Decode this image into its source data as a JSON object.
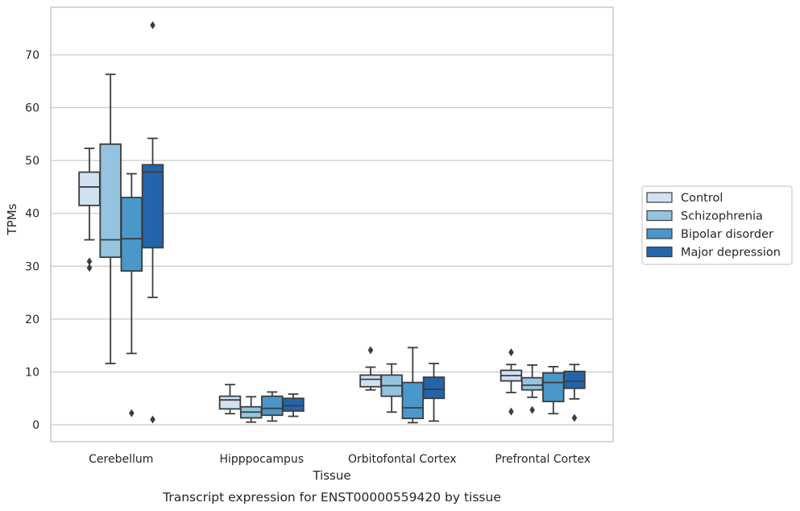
{
  "caption": "Transcript expression for ENST00000559420 by tissue",
  "chart_data": {
    "type": "box",
    "xlabel": "Tissue",
    "ylabel": "TPMs",
    "ylim": [
      -3.2,
      79
    ],
    "yticks": [
      0,
      10,
      20,
      30,
      40,
      50,
      60,
      70
    ],
    "grid": "horizontal",
    "legend_position": "right",
    "categories": [
      "Cerebellum",
      "Hipppocampus",
      "Orbitofontal Cortex",
      "Prefrontal Cortex"
    ],
    "series": [
      {
        "name": "Control",
        "color": "#d0e1f2",
        "boxes": [
          {
            "whisker_low": 35,
            "q1": 41.5,
            "median": 45,
            "q3": 47.8,
            "whisker_high": 52.3,
            "outliers": [
              29.7,
              30.9
            ]
          },
          {
            "whisker_low": 2.1,
            "q1": 3,
            "median": 4.7,
            "q3": 5.4,
            "whisker_high": 7.6,
            "outliers": []
          },
          {
            "whisker_low": 6.6,
            "q1": 7.2,
            "median": 8.6,
            "q3": 9.4,
            "whisker_high": 10.9,
            "outliers": [
              14.1
            ]
          },
          {
            "whisker_low": 6.1,
            "q1": 8.3,
            "median": 9.3,
            "q3": 10.3,
            "whisker_high": 11.4,
            "outliers": [
              2.5,
              13.7
            ]
          }
        ]
      },
      {
        "name": "Schizophrenia",
        "color": "#94c4df",
        "boxes": [
          {
            "whisker_low": 11.6,
            "q1": 31.7,
            "median": 35,
            "q3": 53.1,
            "whisker_high": 66.3,
            "outliers": []
          },
          {
            "whisker_low": 0.5,
            "q1": 1.3,
            "median": 2.4,
            "q3": 3.4,
            "whisker_high": 5.3,
            "outliers": []
          },
          {
            "whisker_low": 2.4,
            "q1": 5.4,
            "median": 7.4,
            "q3": 9.4,
            "whisker_high": 11.5,
            "outliers": []
          },
          {
            "whisker_low": 5.2,
            "q1": 6.6,
            "median": 7.5,
            "q3": 8.9,
            "whisker_high": 11.3,
            "outliers": [
              2.8
            ]
          }
        ]
      },
      {
        "name": "Bipolar disorder",
        "color": "#4a98c9",
        "boxes": [
          {
            "whisker_low": 13.5,
            "q1": 29.1,
            "median": 35.2,
            "q3": 43,
            "whisker_high": 47.5,
            "outliers": [
              2.2
            ]
          },
          {
            "whisker_low": 0.7,
            "q1": 1.8,
            "median": 3.1,
            "q3": 5.4,
            "whisker_high": 6.2,
            "outliers": []
          },
          {
            "whisker_low": 0.4,
            "q1": 1.2,
            "median": 3.2,
            "q3": 8,
            "whisker_high": 14.6,
            "outliers": []
          },
          {
            "whisker_low": 2.1,
            "q1": 4.4,
            "median": 8,
            "q3": 9.8,
            "whisker_high": 11,
            "outliers": []
          }
        ]
      },
      {
        "name": "Major depression",
        "color": "#2464ab",
        "boxes": [
          {
            "whisker_low": 24.1,
            "q1": 33.5,
            "median": 47.8,
            "q3": 49.2,
            "whisker_high": 54.2,
            "outliers": [
              1,
              75.6
            ]
          },
          {
            "whisker_low": 1.6,
            "q1": 2.6,
            "median": 3.6,
            "q3": 5,
            "whisker_high": 5.8,
            "outliers": []
          },
          {
            "whisker_low": 0.7,
            "q1": 5,
            "median": 6.7,
            "q3": 9,
            "whisker_high": 11.6,
            "outliers": []
          },
          {
            "whisker_low": 4.9,
            "q1": 6.9,
            "median": 8.2,
            "q3": 10.1,
            "whisker_high": 11.4,
            "outliers": [
              1.3
            ]
          }
        ]
      }
    ]
  }
}
